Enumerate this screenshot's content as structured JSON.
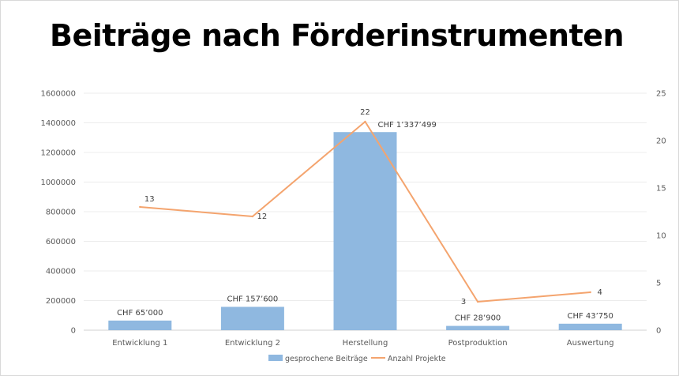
{
  "title": "Beiträge nach Förderinstrumenten",
  "chart_data": {
    "type": "bar",
    "categories": [
      "Entwicklung 1",
      "Entwicklung 2",
      "Herstellung",
      "Postproduktion",
      "Auswertung"
    ],
    "series": [
      {
        "name": "gesprochene Beiträge",
        "type": "bar",
        "axis": "left",
        "color": "#8fb8e0",
        "values": [
          65000,
          157600,
          1337499,
          28900,
          43750
        ],
        "labels": [
          "CHF 65’000",
          "CHF 157’600",
          "CHF 1’337’499",
          "CHF 28’900",
          "CHF 43’750"
        ]
      },
      {
        "name": "Anzahl Projekte",
        "type": "line",
        "axis": "right",
        "color": "#f4a46e",
        "values": [
          13,
          12,
          22,
          3,
          4
        ],
        "labels": [
          "13",
          "12",
          "22",
          "3",
          "4"
        ]
      }
    ],
    "y_left": {
      "min": 0,
      "max": 1600000,
      "ticks": [
        "0",
        "200000",
        "400000",
        "600000",
        "800000",
        "1000000",
        "1200000",
        "1400000",
        "1600000"
      ]
    },
    "y_right": {
      "min": 0,
      "max": 25,
      "ticks": [
        "0",
        "5",
        "10",
        "15",
        "20",
        "25"
      ]
    },
    "grid": true,
    "legend": "bottom"
  }
}
